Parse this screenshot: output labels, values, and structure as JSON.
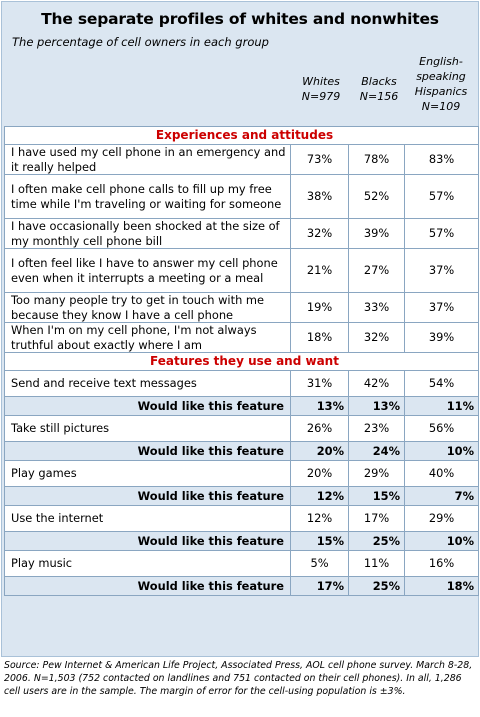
{
  "title": "The separate profiles of whites and nonwhites",
  "subtitle": "The percentage of cell owners in each group",
  "columns": [
    {
      "label": "Whites",
      "n": "N=979"
    },
    {
      "label": "Blacks",
      "n": "N=156"
    },
    {
      "label": "English-speaking Hispanics",
      "n": "N=109"
    }
  ],
  "sections": [
    {
      "title": "Experiences and attitudes",
      "rows": [
        {
          "label": "I have used my cell phone in an emergency and it really helped",
          "values": [
            "73%",
            "78%",
            "83%"
          ]
        },
        {
          "label": "I often make cell phone calls to fill up my free time while I'm traveling or waiting for someone",
          "values": [
            "38%",
            "52%",
            "57%"
          ]
        },
        {
          "label": "I have occasionally been shocked at the size of my monthly cell phone bill",
          "values": [
            "32%",
            "39%",
            "57%"
          ]
        },
        {
          "label": "I often feel like I have to answer my cell phone even when it interrupts a meeting or a meal",
          "values": [
            "21%",
            "27%",
            "37%"
          ]
        },
        {
          "label": "Too many people try to get in touch with me because they know I have a cell phone",
          "values": [
            "19%",
            "33%",
            "37%"
          ]
        },
        {
          "label": "When I'm on my cell phone, I'm not always truthful about exactly where I am",
          "values": [
            "18%",
            "32%",
            "39%"
          ]
        }
      ]
    },
    {
      "title": "Features they use and want",
      "rows": [
        {
          "label": "Send and receive text messages",
          "values": [
            "31%",
            "42%",
            "54%"
          ],
          "sub": {
            "label": "Would like this feature",
            "values": [
              "13%",
              "13%",
              "11%"
            ]
          }
        },
        {
          "label": "Take still pictures",
          "values": [
            "26%",
            "23%",
            "56%"
          ],
          "sub": {
            "label": "Would like this feature",
            "values": [
              "20%",
              "24%",
              "10%"
            ]
          }
        },
        {
          "label": "Play games",
          "values": [
            "20%",
            "29%",
            "40%"
          ],
          "sub": {
            "label": "Would like this feature",
            "values": [
              "12%",
              "15%",
              "7%"
            ]
          }
        },
        {
          "label": "Use the internet",
          "values": [
            "12%",
            "17%",
            "29%"
          ],
          "sub": {
            "label": "Would like this feature",
            "values": [
              "15%",
              "25%",
              "10%"
            ]
          }
        },
        {
          "label": "Play music",
          "values": [
            "5%",
            "11%",
            "16%"
          ],
          "sub": {
            "label": "Would like this feature",
            "values": [
              "17%",
              "25%",
              "18%"
            ]
          }
        }
      ]
    }
  ],
  "source": "Source: Pew Internet & American Life Project, Associated Press, AOL cell phone survey. March 8-28, 2006. N=1,503 (752 contacted on landlines and 751 contacted on their cell phones). In all, 1,286 cell users are in the sample. The margin of error for the cell-using population is ±3%."
}
